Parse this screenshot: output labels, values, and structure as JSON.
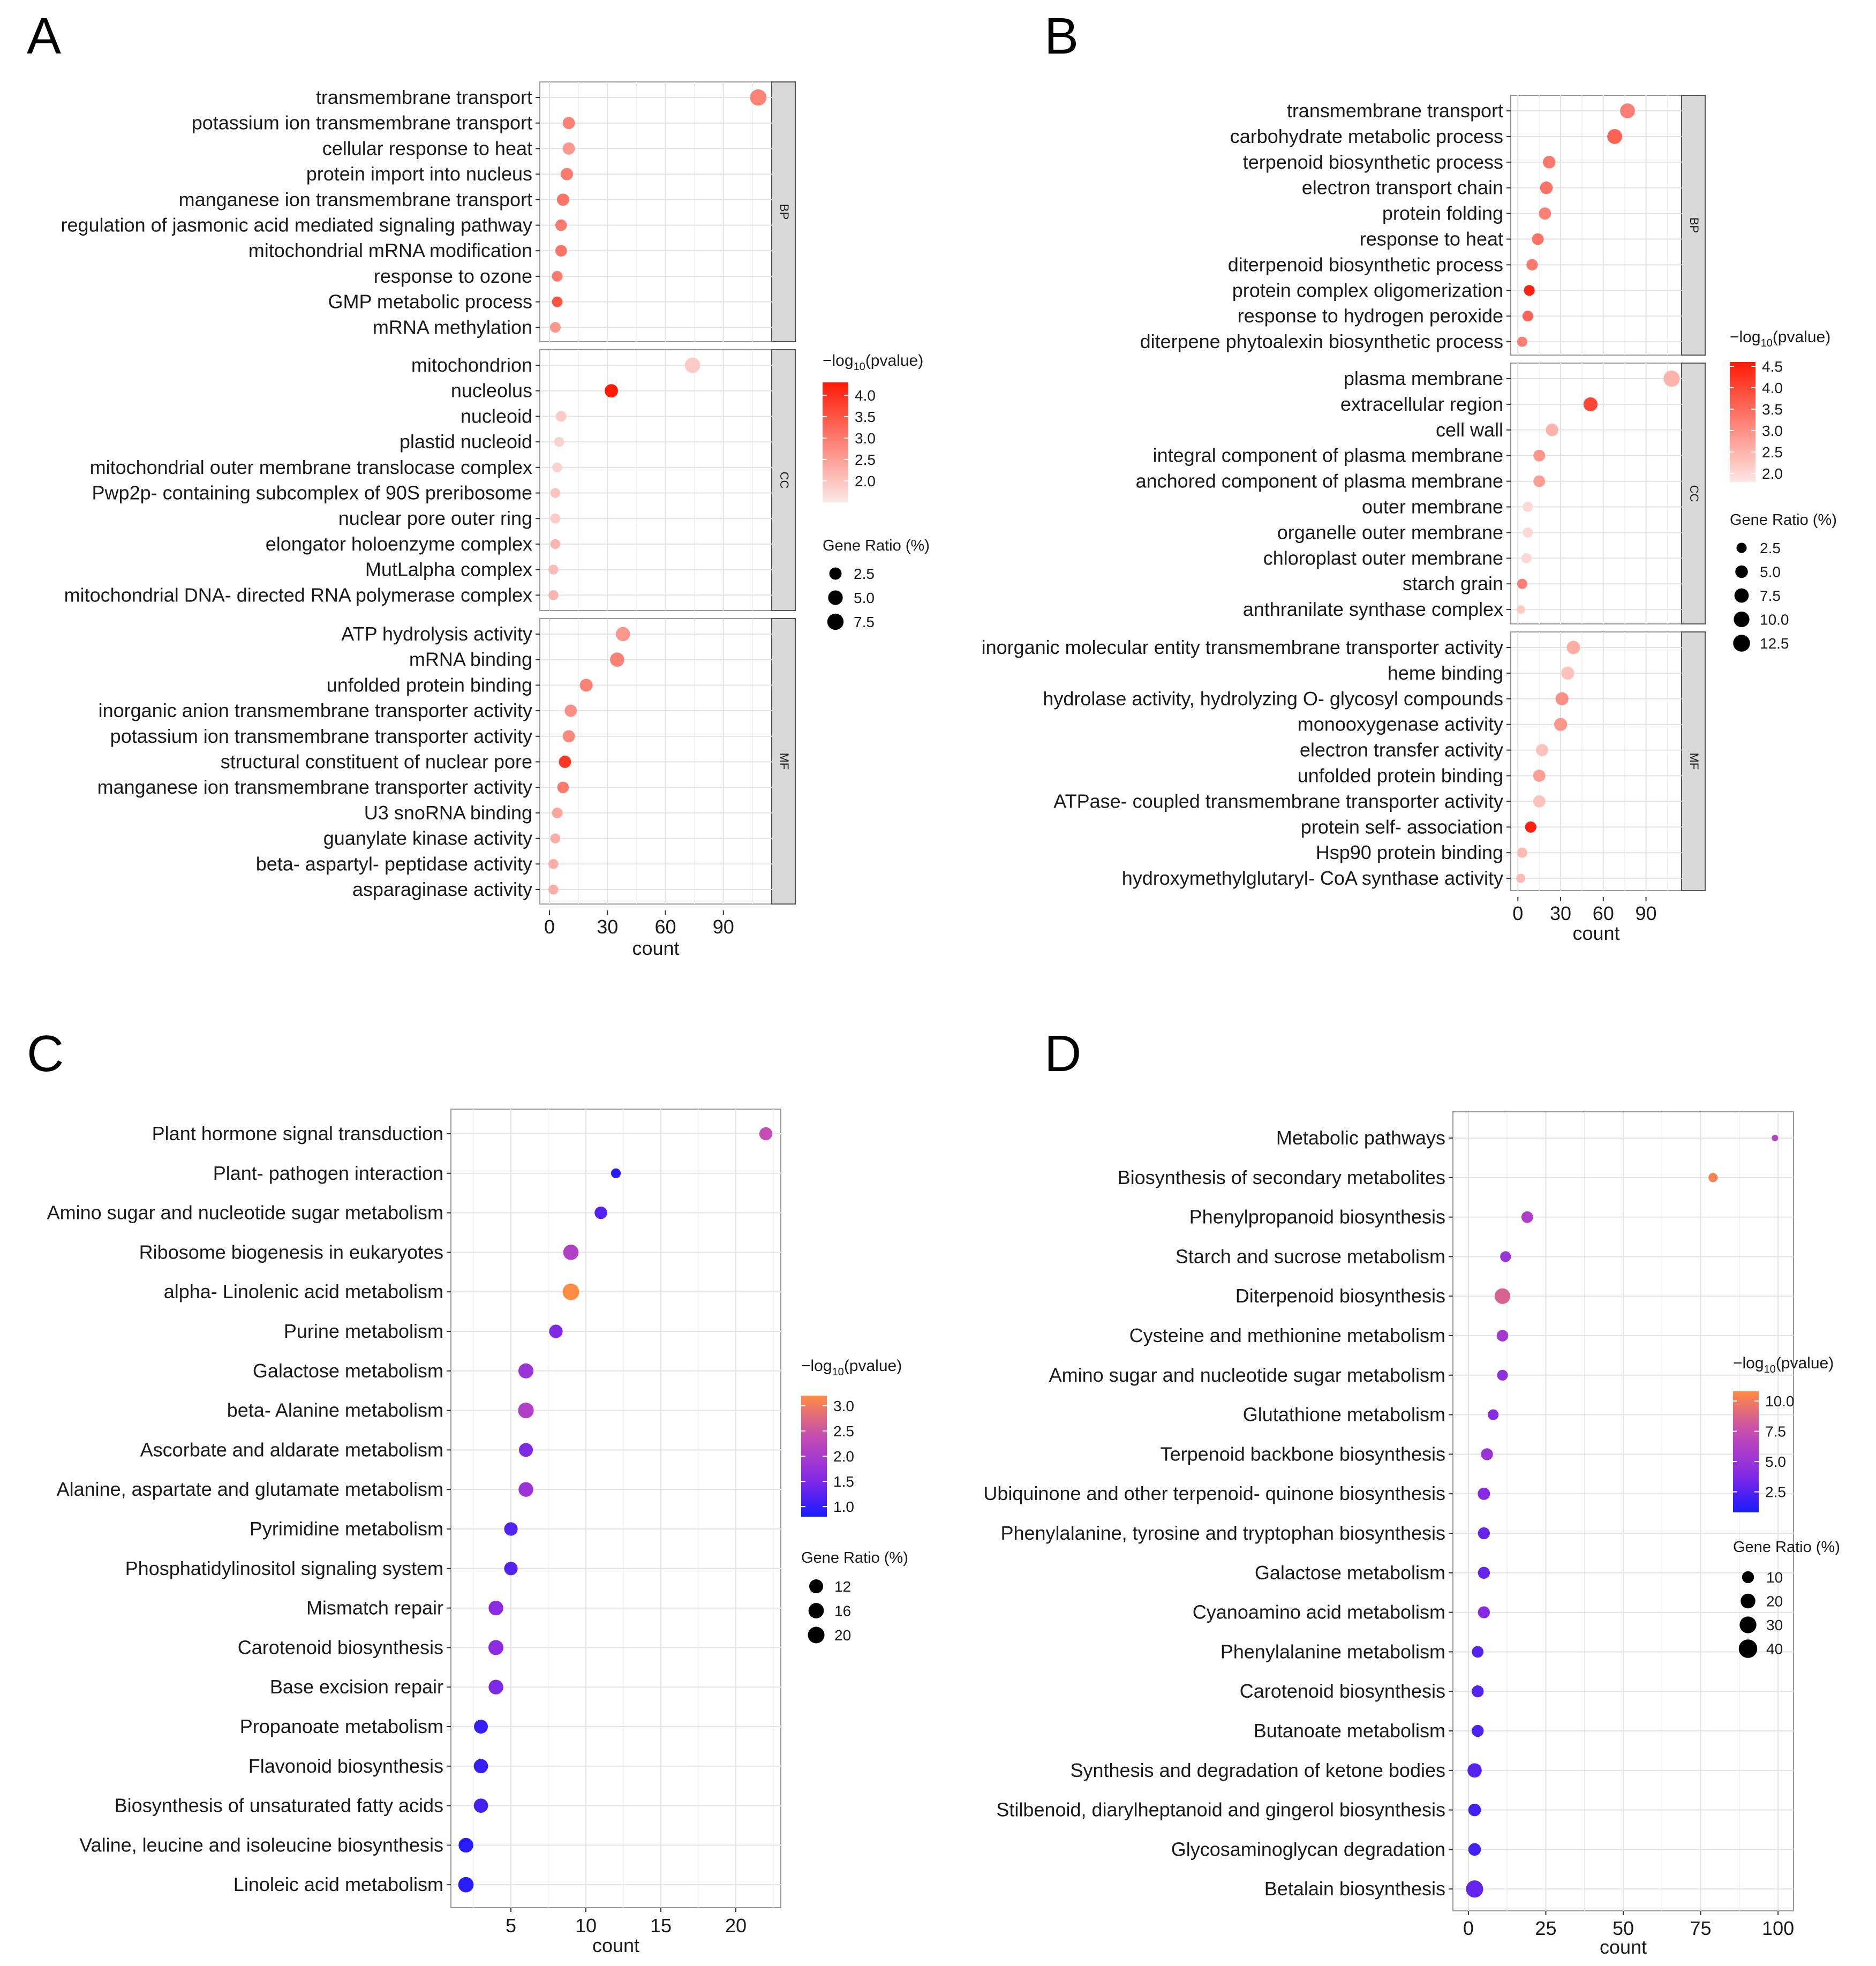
{
  "chart_data": [
    {
      "panel": "A",
      "type": "scatter",
      "xlabel": "count",
      "xlim": [
        -5,
        115
      ],
      "xticks": [
        0,
        30,
        60,
        90
      ],
      "color_title": "−log10(pvalue)",
      "color_range": [
        1.5,
        4.3
      ],
      "color_ticks": [
        2.0,
        2.5,
        3.0,
        3.5,
        4.0
      ],
      "color_low": "#fbe9e6",
      "color_high": "#ff1a05",
      "size_title": "Gene Ratio (%)",
      "size_ticks": [
        2.5,
        5.0,
        7.5
      ],
      "size_range": [
        1,
        9
      ],
      "facets": [
        {
          "label": "BP",
          "terms": [
            {
              "term": "transmembrane transport",
              "count": 108,
              "log10p": 2.9,
              "ratio": 7.5
            },
            {
              "term": "potassium ion transmembrane transport",
              "count": 10,
              "log10p": 2.9,
              "ratio": 2.5
            },
            {
              "term": "cellular response to heat",
              "count": 10,
              "log10p": 2.6,
              "ratio": 2.5
            },
            {
              "term": "protein import into nucleus",
              "count": 9,
              "log10p": 3.0,
              "ratio": 2.5
            },
            {
              "term": "manganese ion transmembrane transport",
              "count": 7,
              "log10p": 3.1,
              "ratio": 2.5
            },
            {
              "term": "regulation of jasmonic acid mediated signaling pathway",
              "count": 6,
              "log10p": 3.0,
              "ratio": 2.0
            },
            {
              "term": "mitochondrial mRNA modification",
              "count": 6,
              "log10p": 3.1,
              "ratio": 2.0
            },
            {
              "term": "response to ozone",
              "count": 4,
              "log10p": 3.0,
              "ratio": 1.5
            },
            {
              "term": "GMP metabolic process",
              "count": 4,
              "log10p": 3.5,
              "ratio": 1.5
            },
            {
              "term": "mRNA methylation",
              "count": 3,
              "log10p": 2.6,
              "ratio": 1.5
            }
          ]
        },
        {
          "label": "CC",
          "terms": [
            {
              "term": "mitochondrion",
              "count": 74,
              "log10p": 1.9,
              "ratio": 6.0
            },
            {
              "term": "nucleolus",
              "count": 32,
              "log10p": 4.3,
              "ratio": 3.5
            },
            {
              "term": "nucleoid",
              "count": 6,
              "log10p": 1.9,
              "ratio": 1.5
            },
            {
              "term": "plastid nucleoid",
              "count": 5,
              "log10p": 1.8,
              "ratio": 1.2
            },
            {
              "term": "mitochondrial outer membrane translocase complex",
              "count": 4,
              "log10p": 1.8,
              "ratio": 1.2
            },
            {
              "term": "Pwp2p- containing subcomplex of 90S preribosome",
              "count": 3,
              "log10p": 2.0,
              "ratio": 1.2
            },
            {
              "term": "nuclear pore outer ring",
              "count": 3,
              "log10p": 1.9,
              "ratio": 1.2
            },
            {
              "term": "elongator holoenzyme complex",
              "count": 3,
              "log10p": 2.2,
              "ratio": 1.2
            },
            {
              "term": "MutLalpha complex",
              "count": 2,
              "log10p": 2.1,
              "ratio": 1.2
            },
            {
              "term": "mitochondrial DNA- directed RNA polymerase complex",
              "count": 2,
              "log10p": 2.2,
              "ratio": 1.2
            }
          ]
        },
        {
          "label": "MF",
          "terms": [
            {
              "term": "ATP hydrolysis activity",
              "count": 38,
              "log10p": 2.6,
              "ratio": 4.5
            },
            {
              "term": "mRNA binding",
              "count": 35,
              "log10p": 2.9,
              "ratio": 4.5
            },
            {
              "term": "unfolded protein binding",
              "count": 19,
              "log10p": 2.9,
              "ratio": 3.0
            },
            {
              "term": "inorganic anion transmembrane transporter activity",
              "count": 11,
              "log10p": 2.7,
              "ratio": 2.5
            },
            {
              "term": "potassium ion transmembrane transporter activity",
              "count": 10,
              "log10p": 2.8,
              "ratio": 2.5
            },
            {
              "term": "structural constituent of nuclear pore",
              "count": 8,
              "log10p": 3.9,
              "ratio": 2.5
            },
            {
              "term": "manganese ion transmembrane transporter activity",
              "count": 7,
              "log10p": 3.0,
              "ratio": 2.0
            },
            {
              "term": "U3 snoRNA binding",
              "count": 4,
              "log10p": 2.4,
              "ratio": 1.5
            },
            {
              "term": "guanylate kinase activity",
              "count": 3,
              "log10p": 2.3,
              "ratio": 1.2
            },
            {
              "term": "beta- aspartyl- peptidase activity",
              "count": 2,
              "log10p": 2.3,
              "ratio": 1.2
            },
            {
              "term": "asparaginase activity",
              "count": 2,
              "log10p": 2.3,
              "ratio": 1.2
            }
          ]
        }
      ]
    },
    {
      "panel": "B",
      "type": "scatter",
      "xlabel": "count",
      "xlim": [
        -5,
        115
      ],
      "xticks": [
        0,
        30,
        60,
        90
      ],
      "color_title": "−log10(pvalue)",
      "color_range": [
        1.8,
        4.6
      ],
      "color_ticks": [
        2.0,
        2.5,
        3.0,
        3.5,
        4.0,
        4.5
      ],
      "color_low": "#fde7e4",
      "color_high": "#ff1a05",
      "size_title": "Gene Ratio (%)",
      "size_ticks": [
        2.5,
        5.0,
        7.5,
        10.0,
        12.5
      ],
      "size_range": [
        1,
        13
      ],
      "facets": [
        {
          "label": "BP",
          "terms": [
            {
              "term": "transmembrane transport",
              "count": 77,
              "log10p": 3.2,
              "ratio": 8.5
            },
            {
              "term": "carbohydrate metabolic process",
              "count": 68,
              "log10p": 3.6,
              "ratio": 8.5
            },
            {
              "term": "terpenoid biosynthetic process",
              "count": 22,
              "log10p": 3.3,
              "ratio": 5.0
            },
            {
              "term": "electron transport chain",
              "count": 20,
              "log10p": 3.4,
              "ratio": 5.0
            },
            {
              "term": "protein folding",
              "count": 19,
              "log10p": 3.2,
              "ratio": 4.5
            },
            {
              "term": "response to heat",
              "count": 14,
              "log10p": 3.4,
              "ratio": 4.0
            },
            {
              "term": "diterpenoid biosynthetic process",
              "count": 10,
              "log10p": 3.3,
              "ratio": 3.5
            },
            {
              "term": "protein complex oligomerization",
              "count": 8,
              "log10p": 4.5,
              "ratio": 3.0
            },
            {
              "term": "response to hydrogen peroxide",
              "count": 7,
              "log10p": 3.6,
              "ratio": 3.0
            },
            {
              "term": "diterpene phytoalexin biosynthetic process",
              "count": 3,
              "log10p": 3.2,
              "ratio": 2.5
            }
          ]
        },
        {
          "label": "CC",
          "terms": [
            {
              "term": "plasma membrane",
              "count": 108,
              "log10p": 2.5,
              "ratio": 11.0
            },
            {
              "term": "extracellular region",
              "count": 51,
              "log10p": 4.0,
              "ratio": 7.0
            },
            {
              "term": "cell wall",
              "count": 24,
              "log10p": 2.5,
              "ratio": 5.0
            },
            {
              "term": "integral component of plasma membrane",
              "count": 15,
              "log10p": 2.9,
              "ratio": 4.0
            },
            {
              "term": "anchored component of plasma membrane",
              "count": 15,
              "log10p": 2.8,
              "ratio": 4.0
            },
            {
              "term": "outer membrane",
              "count": 7,
              "log10p": 2.0,
              "ratio": 2.5
            },
            {
              "term": "organelle outer membrane",
              "count": 7,
              "log10p": 2.0,
              "ratio": 2.5
            },
            {
              "term": "chloroplast outer membrane",
              "count": 6,
              "log10p": 2.0,
              "ratio": 2.5
            },
            {
              "term": "starch grain",
              "count": 3,
              "log10p": 3.2,
              "ratio": 2.5
            },
            {
              "term": "anthranilate synthase complex",
              "count": 2,
              "log10p": 2.2,
              "ratio": 1.5
            }
          ]
        },
        {
          "label": "MF",
          "terms": [
            {
              "term": "inorganic molecular entity transmembrane transporter activity",
              "count": 39,
              "log10p": 2.6,
              "ratio": 6.0
            },
            {
              "term": "heme binding",
              "count": 35,
              "log10p": 2.3,
              "ratio": 5.5
            },
            {
              "term": "hydrolase activity, hydrolyzing O- glycosyl compounds",
              "count": 31,
              "log10p": 3.0,
              "ratio": 5.5
            },
            {
              "term": "monooxygenase activity",
              "count": 30,
              "log10p": 2.9,
              "ratio": 5.5
            },
            {
              "term": "electron transfer activity",
              "count": 17,
              "log10p": 2.3,
              "ratio": 4.5
            },
            {
              "term": "unfolded protein binding",
              "count": 15,
              "log10p": 2.8,
              "ratio": 4.5
            },
            {
              "term": "ATPase- coupled transmembrane transporter activity",
              "count": 15,
              "log10p": 2.3,
              "ratio": 4.5
            },
            {
              "term": "protein self- association",
              "count": 9,
              "log10p": 4.5,
              "ratio": 3.5
            },
            {
              "term": "Hsp90 protein binding",
              "count": 3,
              "log10p": 2.4,
              "ratio": 2.5
            },
            {
              "term": "hydroxymethylglutaryl- CoA synthase activity",
              "count": 2,
              "log10p": 2.4,
              "ratio": 1.8
            }
          ]
        }
      ]
    },
    {
      "panel": "C",
      "type": "scatter",
      "xlabel": "count",
      "xlim": [
        1,
        23
      ],
      "xticks": [
        5,
        10,
        15,
        20
      ],
      "color_title": "−log10(pvalue)",
      "color_range": [
        0.8,
        3.2
      ],
      "color_ticks": [
        1.0,
        1.5,
        2.0,
        2.5,
        3.0
      ],
      "color_stops": [
        "#1a1aff",
        "#8c2be2",
        "#c54db3",
        "#ff8c42"
      ],
      "size_title": "Gene Ratio (%)",
      "size_ticks": [
        12,
        16,
        20
      ],
      "size_range": [
        4,
        22
      ],
      "terms": [
        {
          "term": "Plant hormone signal transduction",
          "count": 22,
          "log10p": 2.4,
          "ratio": 10
        },
        {
          "term": "Plant- pathogen interaction",
          "count": 12,
          "log10p": 0.9,
          "ratio": 5
        },
        {
          "term": "Amino sugar and nucleotide sugar metabolism",
          "count": 11,
          "log10p": 1.2,
          "ratio": 9
        },
        {
          "term": "Ribosome biogenesis in eukaryotes",
          "count": 9,
          "log10p": 2.1,
          "ratio": 16
        },
        {
          "term": "alpha- Linolenic acid metabolism",
          "count": 9,
          "log10p": 3.2,
          "ratio": 20
        },
        {
          "term": "Purine metabolism",
          "count": 8,
          "log10p": 1.5,
          "ratio": 11
        },
        {
          "term": "Galactose metabolism",
          "count": 6,
          "log10p": 1.8,
          "ratio": 15
        },
        {
          "term": "beta- Alanine metabolism",
          "count": 6,
          "log10p": 2.1,
          "ratio": 17
        },
        {
          "term": "Ascorbate and aldarate metabolism",
          "count": 6,
          "log10p": 1.5,
          "ratio": 12
        },
        {
          "term": "Alanine, aspartate and glutamate metabolism",
          "count": 6,
          "log10p": 1.8,
          "ratio": 14
        },
        {
          "term": "Pyrimidine metabolism",
          "count": 5,
          "log10p": 1.2,
          "ratio": 11
        },
        {
          "term": "Phosphatidylinositol signaling system",
          "count": 5,
          "log10p": 1.2,
          "ratio": 11
        },
        {
          "term": "Mismatch repair",
          "count": 4,
          "log10p": 1.6,
          "ratio": 14
        },
        {
          "term": "Carotenoid biosynthesis",
          "count": 4,
          "log10p": 1.6,
          "ratio": 15
        },
        {
          "term": "Base excision repair",
          "count": 4,
          "log10p": 1.5,
          "ratio": 14
        },
        {
          "term": "Propanoate metabolism",
          "count": 3,
          "log10p": 1.0,
          "ratio": 12
        },
        {
          "term": "Flavonoid biosynthesis",
          "count": 3,
          "log10p": 1.0,
          "ratio": 13
        },
        {
          "term": "Biosynthesis of unsaturated fatty acids",
          "count": 3,
          "log10p": 1.1,
          "ratio": 13
        },
        {
          "term": "Valine, leucine and isoleucine biosynthesis",
          "count": 2,
          "log10p": 0.9,
          "ratio": 14
        },
        {
          "term": "Linoleic acid metabolism",
          "count": 2,
          "log10p": 0.9,
          "ratio": 16
        }
      ]
    },
    {
      "panel": "D",
      "type": "scatter",
      "xlabel": "count",
      "xlim": [
        -5,
        105
      ],
      "xticks": [
        0,
        25,
        50,
        75,
        100
      ],
      "color_title": "−log10(pvalue)",
      "color_range": [
        0.8,
        10.8
      ],
      "color_ticks": [
        2.5,
        5.0,
        7.5,
        10.0
      ],
      "color_stops": [
        "#1a1aff",
        "#8c2be2",
        "#c54db3",
        "#ff8c42"
      ],
      "size_title": "Gene Ratio (%)",
      "size_ticks": [
        10,
        20,
        30,
        40
      ],
      "size_range": [
        2,
        45
      ],
      "terms": [
        {
          "term": "Metabolic pathways",
          "count": 99,
          "log10p": 6.5,
          "ratio": 2
        },
        {
          "term": "Biosynthesis of secondary metabolites",
          "count": 79,
          "log10p": 10.2,
          "ratio": 4
        },
        {
          "term": "Phenylpropanoid biosynthesis",
          "count": 19,
          "log10p": 6.0,
          "ratio": 9
        },
        {
          "term": "Starch and sucrose metabolism",
          "count": 12,
          "log10p": 5.0,
          "ratio": 7
        },
        {
          "term": "Diterpenoid biosynthesis",
          "count": 11,
          "log10p": 8.5,
          "ratio": 24
        },
        {
          "term": "Cysteine and methionine metabolism",
          "count": 11,
          "log10p": 5.5,
          "ratio": 9
        },
        {
          "term": "Amino sugar and nucleotide sugar metabolism",
          "count": 11,
          "log10p": 4.5,
          "ratio": 7
        },
        {
          "term": "Glutathione metabolism",
          "count": 8,
          "log10p": 4.0,
          "ratio": 7
        },
        {
          "term": "Terpenoid backbone biosynthesis",
          "count": 6,
          "log10p": 5.0,
          "ratio": 10
        },
        {
          "term": "Ubiquinone and other terpenoid- quinone biosynthesis",
          "count": 5,
          "log10p": 4.0,
          "ratio": 11
        },
        {
          "term": "Phenylalanine, tyrosine and tryptophan biosynthesis",
          "count": 5,
          "log10p": 3.0,
          "ratio": 10
        },
        {
          "term": "Galactose metabolism",
          "count": 5,
          "log10p": 3.0,
          "ratio": 10
        },
        {
          "term": "Cyanoamino acid metabolism",
          "count": 5,
          "log10p": 4.0,
          "ratio": 10
        },
        {
          "term": "Phenylalanine metabolism",
          "count": 3,
          "log10p": 2.5,
          "ratio": 9
        },
        {
          "term": "Carotenoid biosynthesis",
          "count": 3,
          "log10p": 2.5,
          "ratio": 10
        },
        {
          "term": "Butanoate metabolism",
          "count": 3,
          "log10p": 2.3,
          "ratio": 10
        },
        {
          "term": "Synthesis and degradation of ketone bodies",
          "count": 2,
          "log10p": 2.5,
          "ratio": 18
        },
        {
          "term": "Stilbenoid, diarylheptanoid and gingerol biosynthesis",
          "count": 2,
          "log10p": 2.0,
          "ratio": 12
        },
        {
          "term": "Glycosaminoglycan degradation",
          "count": 2,
          "log10p": 2.0,
          "ratio": 12
        },
        {
          "term": "Betalain biosynthesis",
          "count": 2,
          "log10p": 3.0,
          "ratio": 32
        }
      ]
    }
  ]
}
